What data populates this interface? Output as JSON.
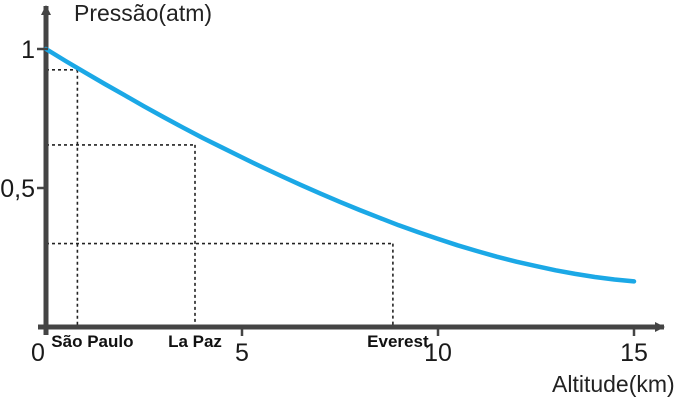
{
  "chart_data": {
    "type": "line",
    "ylabel": "Pressão(atm)",
    "xlabel": "Altitude(km)",
    "xlim": [
      0,
      15.5
    ],
    "ylim": [
      0,
      1.05
    ],
    "grid": false,
    "x_ticks": [
      {
        "value": 0,
        "label": "0"
      },
      {
        "value": 5,
        "label": "5"
      },
      {
        "value": 10,
        "label": "10"
      },
      {
        "value": 15,
        "label": "15"
      }
    ],
    "y_ticks": [
      {
        "value": 0.5,
        "label": "0,5"
      },
      {
        "value": 1,
        "label": "1"
      }
    ],
    "series": [
      {
        "color": "#1ba8e6",
        "x": [
          0,
          0.5,
          1,
          1.5,
          2,
          2.5,
          3,
          3.5,
          4,
          4.5,
          5,
          5.5,
          6,
          6.5,
          7,
          7.5,
          8,
          8.5,
          9,
          9.5,
          10,
          10.5,
          11,
          11.5,
          12,
          12.5,
          13,
          13.5,
          14,
          14.5,
          15
        ],
        "y": [
          1.0,
          0.957,
          0.915,
          0.874,
          0.834,
          0.794,
          0.755,
          0.717,
          0.68,
          0.645,
          0.61,
          0.576,
          0.543,
          0.511,
          0.48,
          0.45,
          0.421,
          0.393,
          0.366,
          0.341,
          0.317,
          0.294,
          0.273,
          0.253,
          0.235,
          0.219,
          0.204,
          0.191,
          0.18,
          0.171,
          0.164
        ]
      }
    ],
    "annotations": [
      {
        "label": "São Paulo",
        "x": 0.8,
        "y": 0.925
      },
      {
        "label": "La Paz",
        "x": 3.8,
        "y": 0.655
      },
      {
        "label": "Everest",
        "x": 8.85,
        "y": 0.3
      }
    ]
  }
}
